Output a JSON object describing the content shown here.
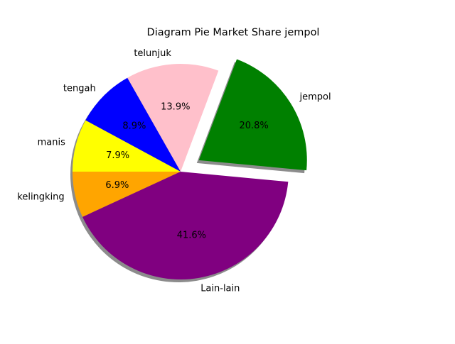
{
  "chart_data": {
    "type": "pie",
    "title": "Diagram Pie Market Share jempol",
    "start_angle_deg": 180,
    "direction": "counterclockwise",
    "shadow": true,
    "slices": [
      {
        "label": "kelingking",
        "value": 6.9,
        "pct_label": "6.9%",
        "color": "#ffa500",
        "explode": 0
      },
      {
        "label": "Lain-lain",
        "value": 41.6,
        "pct_label": "41.6%",
        "color": "#800080",
        "explode": 0
      },
      {
        "label": "jempol",
        "value": 20.8,
        "pct_label": "20.8%",
        "color": "#008000",
        "explode": 1
      },
      {
        "label": "telunjuk",
        "value": 13.9,
        "pct_label": "13.9%",
        "color": "#ffc0cb",
        "explode": 0
      },
      {
        "label": "tengah",
        "value": 8.9,
        "pct_label": "8.9%",
        "color": "#0000ff",
        "explode": 0
      },
      {
        "label": "manis",
        "value": 7.9,
        "pct_label": "7.9%",
        "color": "#ffff00",
        "explode": 0
      }
    ]
  }
}
